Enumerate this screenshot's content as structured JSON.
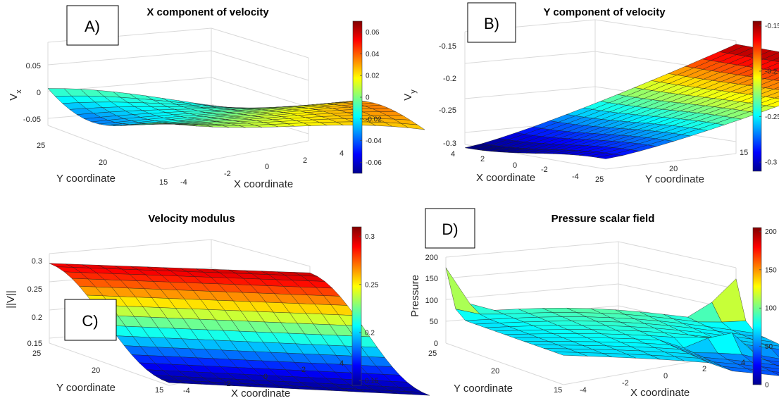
{
  "chart_data": [
    {
      "panel": "A)",
      "type": "surface",
      "title": "X component of velocity",
      "xlabel": "X coordinate",
      "ylabel": "Y coordinate",
      "zlabel": "V_x",
      "zlabel_main": "V",
      "zlabel_sub": "x",
      "x_ticks": [
        "-4",
        "-2",
        "0",
        "2",
        "4"
      ],
      "y_ticks": [
        "15",
        "20",
        "25"
      ],
      "z_ticks": [
        "-0.05",
        "0",
        "0.05"
      ],
      "zlim": [
        -0.07,
        0.07
      ],
      "colorbar": {
        "ticks": [
          "-0.06",
          "-0.04",
          "-0.02",
          "0",
          "0.02",
          "0.04",
          "0.06"
        ],
        "range": [
          -0.07,
          0.07
        ]
      },
      "colormap": "jet",
      "grid": true
    },
    {
      "panel": "B)",
      "type": "surface",
      "title": "Y component of velocity",
      "xlabel": "X coordinate",
      "ylabel": "Y coordinate",
      "zlabel": "V_y",
      "zlabel_main": "V",
      "zlabel_sub": "y",
      "x_ticks": [
        "4",
        "2",
        "0",
        "-2",
        "-4"
      ],
      "y_ticks": [
        "15",
        "20",
        "25"
      ],
      "z_ticks": [
        "-0.3",
        "-0.25",
        "-0.2",
        "-0.15"
      ],
      "zlim": [
        -0.31,
        -0.145
      ],
      "colorbar": {
        "ticks": [
          "-0.3",
          "-0.25",
          "-0.2",
          "-0.15"
        ],
        "range": [
          -0.31,
          -0.145
        ]
      },
      "colormap": "jet",
      "grid": true
    },
    {
      "panel": "C)",
      "type": "surface",
      "title": "Velocity modulus",
      "xlabel": "X coordinate",
      "ylabel": "Y coordinate",
      "zlabel": "||V||",
      "x_ticks": [
        "-4",
        "-2",
        "0",
        "2",
        "4"
      ],
      "y_ticks": [
        "15",
        "20",
        "25"
      ],
      "z_ticks": [
        "0.15",
        "0.2",
        "0.25",
        "0.3"
      ],
      "zlim": [
        0.145,
        0.31
      ],
      "colorbar": {
        "ticks": [
          "0.15",
          "0.2",
          "0.25",
          "0.3"
        ],
        "range": [
          0.145,
          0.31
        ]
      },
      "colormap": "jet",
      "grid": true
    },
    {
      "panel": "D)",
      "type": "surface",
      "title": "Pressure scalar field",
      "xlabel": "X coordinate",
      "ylabel": "Y coordinate",
      "zlabel": "Pressure",
      "x_ticks": [
        "-4",
        "-2",
        "0",
        "2",
        "4"
      ],
      "y_ticks": [
        "15",
        "20",
        "25"
      ],
      "z_ticks": [
        "0",
        "50",
        "100",
        "150",
        "200"
      ],
      "zlim": [
        0,
        205
      ],
      "colorbar": {
        "ticks": [
          "0",
          "50",
          "100",
          "150",
          "200"
        ],
        "range": [
          0,
          205
        ]
      },
      "colormap": "jet",
      "grid": true
    }
  ]
}
